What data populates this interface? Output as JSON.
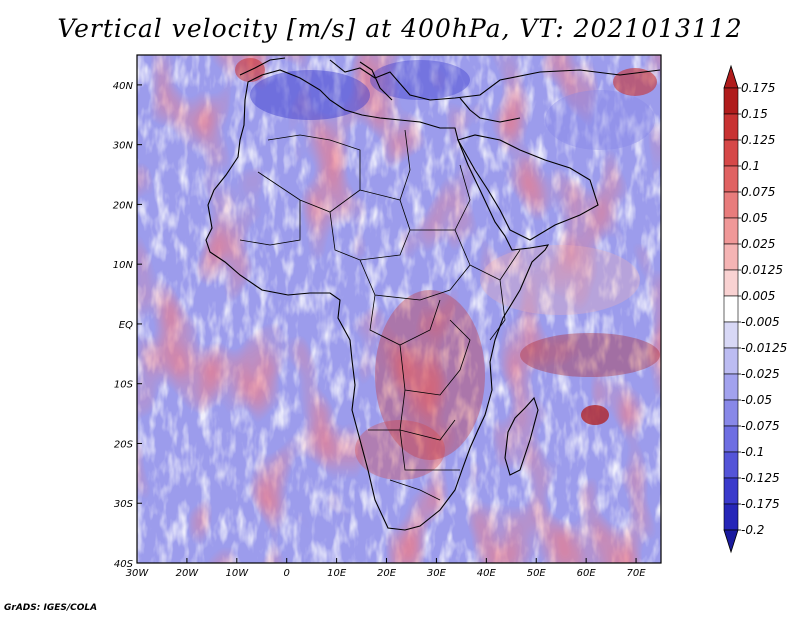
{
  "title": "Vertical velocity [m/s] at 400hPa, VT: 2021013112",
  "credit": "GrADS: IGES/COLA",
  "map": {
    "lon_range": [
      -30,
      75
    ],
    "lat_range": [
      -40,
      45
    ],
    "lon_ticks": [
      "30W",
      "20W",
      "10W",
      "0",
      "10E",
      "20E",
      "30E",
      "40E",
      "50E",
      "60E",
      "70E"
    ],
    "lat_ticks": [
      "40N",
      "30N",
      "20N",
      "10N",
      "EQ",
      "10S",
      "20S",
      "30S",
      "40S"
    ],
    "lon_tick_values": [
      -30,
      -20,
      -10,
      0,
      10,
      20,
      30,
      40,
      50,
      60,
      70
    ],
    "lat_tick_values": [
      40,
      30,
      20,
      10,
      0,
      -10,
      -20,
      -30,
      -40
    ]
  },
  "colorbar": {
    "levels": [
      "0.175",
      "0.15",
      "0.125",
      "0.1",
      "0.075",
      "0.05",
      "0.025",
      "0.0125",
      "0.005",
      "-0.005",
      "-0.0125",
      "-0.025",
      "-0.05",
      "-0.075",
      "-0.1",
      "-0.125",
      "-0.175",
      "-0.2"
    ],
    "colors": [
      "#b01c1c",
      "#c83232",
      "#d64848",
      "#e06262",
      "#e87c7c",
      "#f09898",
      "#f5b4b4",
      "#f9d2d2",
      "#ffffff",
      "#d8d8f6",
      "#bcbcf2",
      "#a2a2ee",
      "#8888e8",
      "#6e6ee2",
      "#5454d8",
      "#3a3acc",
      "#2626b8",
      "#1a1a9e"
    ]
  }
}
